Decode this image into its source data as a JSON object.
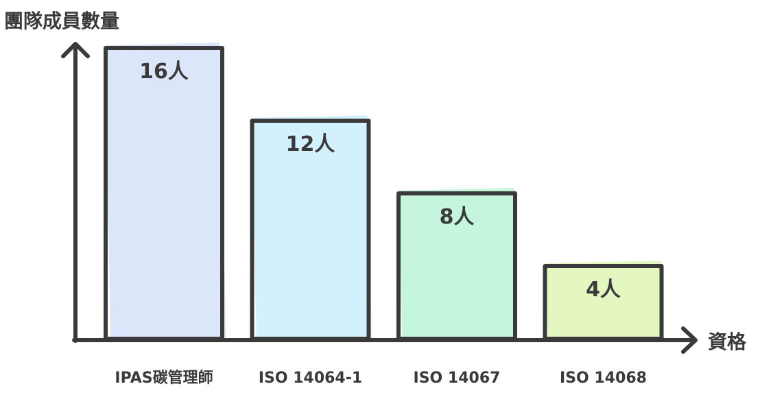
{
  "chart_data": {
    "type": "bar",
    "title": "",
    "ylabel": "團隊成員數量",
    "xlabel": "資格",
    "categories": [
      "IPAS碳管理師",
      "ISO 14064-1",
      "ISO 14067",
      "ISO 14068"
    ],
    "values": [
      16,
      12,
      8,
      4
    ],
    "value_labels": [
      "16人",
      "12人",
      "8人",
      "4人"
    ],
    "unit": "人",
    "ylim": [
      0,
      16
    ],
    "grid": false,
    "legend": "none",
    "colors": [
      "#dbe6fb",
      "#d3f0fd",
      "#c6f5dd",
      "#e4f7c1"
    ],
    "outline_color": "#3a3a3a"
  }
}
